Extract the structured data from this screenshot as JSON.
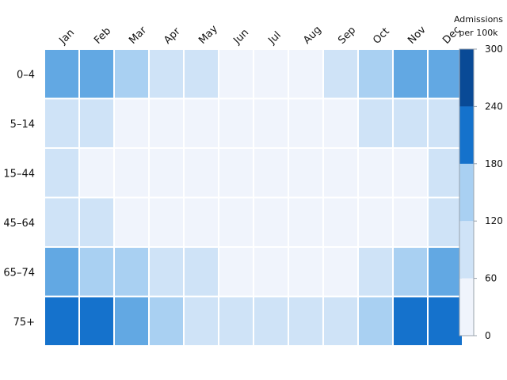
{
  "chart_data": {
    "type": "heatmap",
    "x_categories": [
      "Jan",
      "Feb",
      "Mar",
      "Apr",
      "May",
      "Jun",
      "Jul",
      "Aug",
      "Sep",
      "Oct",
      "Nov",
      "Dec"
    ],
    "y_categories": [
      "0–4",
      "5–14",
      "15–44",
      "45–64",
      "65–74",
      "75+"
    ],
    "values": [
      [
        200,
        205,
        130,
        70,
        65,
        25,
        20,
        20,
        70,
        130,
        205,
        200
      ],
      [
        95,
        60,
        55,
        20,
        20,
        15,
        15,
        15,
        55,
        60,
        60,
        60
      ],
      [
        60,
        55,
        15,
        15,
        15,
        10,
        10,
        10,
        15,
        15,
        20,
        60
      ],
      [
        60,
        60,
        55,
        20,
        20,
        15,
        15,
        15,
        20,
        55,
        55,
        60
      ],
      [
        200,
        150,
        130,
        65,
        70,
        20,
        15,
        15,
        20,
        65,
        130,
        205
      ],
      [
        270,
        280,
        205,
        125,
        65,
        60,
        60,
        60,
        65,
        125,
        285,
        280
      ]
    ],
    "colorbar": {
      "title_lines": [
        "Admissions",
        "per 100k"
      ],
      "ticks": [
        0,
        60,
        120,
        180,
        240,
        300
      ],
      "range": [
        0,
        300
      ],
      "bins": [
        {
          "from": 0,
          "to": 60,
          "color": "#f0f4fc"
        },
        {
          "from": 60,
          "to": 120,
          "color": "#cfe3f7"
        },
        {
          "from": 120,
          "to": 180,
          "color": "#a9d0f2"
        },
        {
          "from": 180,
          "to": 240,
          "color": "#62a8e3"
        },
        {
          "from": 240,
          "to": 300,
          "color": "#1572cc"
        }
      ],
      "top_color": "#094a96"
    },
    "legend_position": "right"
  }
}
